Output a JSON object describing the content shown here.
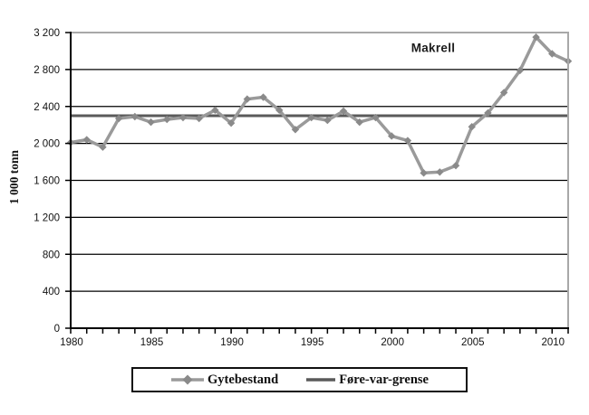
{
  "chart_data": {
    "type": "line",
    "title": "Makrell",
    "xlabel": "",
    "ylabel": "1 000 tonn",
    "x": [
      1980,
      1981,
      1982,
      1983,
      1984,
      1985,
      1986,
      1987,
      1988,
      1989,
      1990,
      1991,
      1992,
      1993,
      1994,
      1995,
      1996,
      1997,
      1998,
      1999,
      2000,
      2001,
      2002,
      2003,
      2004,
      2005,
      2006,
      2007,
      2008,
      2009,
      2010,
      2011
    ],
    "series": [
      {
        "name": "Gytebestand",
        "style": "line-with-diamond-markers",
        "values": [
          2010,
          2040,
          1960,
          2270,
          2290,
          2230,
          2260,
          2280,
          2270,
          2360,
          2220,
          2480,
          2500,
          2360,
          2150,
          2280,
          2250,
          2350,
          2230,
          2280,
          2080,
          2030,
          1680,
          1690,
          1760,
          2180,
          2330,
          2550,
          2790,
          3150,
          2970,
          2890
        ]
      },
      {
        "name": "Føre-var-grense",
        "style": "constant-horizontal-line",
        "value": 2300
      }
    ],
    "ylim": [
      0,
      3200
    ],
    "xlim": [
      1980,
      2011
    ],
    "y_ticks": [
      {
        "value": 0,
        "label": "0"
      },
      {
        "value": 400,
        "label": "400"
      },
      {
        "value": 800,
        "label": "800"
      },
      {
        "value": 1200,
        "label": "1 200"
      },
      {
        "value": 1600,
        "label": "1 600"
      },
      {
        "value": 2000,
        "label": "2 000"
      },
      {
        "value": 2400,
        "label": "2 400"
      },
      {
        "value": 2800,
        "label": "2 800"
      },
      {
        "value": 3200,
        "label": "3 200"
      }
    ],
    "x_major_ticks": [
      {
        "value": 1980,
        "label": "1980"
      },
      {
        "value": 1985,
        "label": "1985"
      },
      {
        "value": 1990,
        "label": "1990"
      },
      {
        "value": 1995,
        "label": "1995"
      },
      {
        "value": 2000,
        "label": "2000"
      },
      {
        "value": 2005,
        "label": "2005"
      },
      {
        "value": 2010,
        "label": "2010"
      }
    ],
    "x_minor_tick_interval": 1,
    "grid": "horizontal",
    "legend_position": "bottom-centered-box",
    "colors": {
      "series_line": "#9a9a9a",
      "series_marker": "#8a8a8a",
      "limit_line": "#5a5a5a",
      "grid_line": "#000000",
      "axis": "#000000",
      "plot_border": "#a8a8a8",
      "tick_text": "#111111"
    }
  }
}
